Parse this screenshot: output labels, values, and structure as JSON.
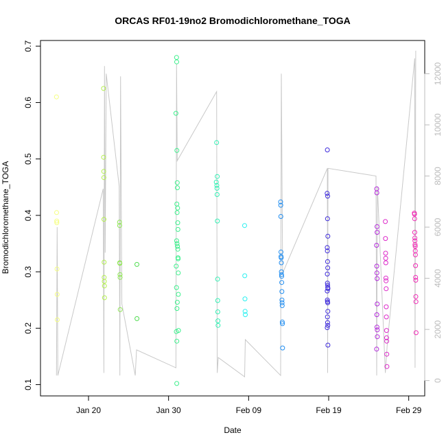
{
  "chart_data": {
    "type": "scatter",
    "title": "ORCAS RF01-19no2 Bromodichloromethane_TOGA",
    "xlabel": "Date",
    "ylabel": "Bromodichloromethane_TOGA",
    "x_axis": {
      "scale": "date",
      "range": [
        "2016-01-14",
        "2016-03-02"
      ],
      "ticks": [
        {
          "date": "2016-01-20",
          "label": "Jan 20"
        },
        {
          "date": "2016-01-30",
          "label": "Jan 30"
        },
        {
          "date": "2016-02-09",
          "label": "Feb 09"
        },
        {
          "date": "2016-02-19",
          "label": "Feb 19"
        },
        {
          "date": "2016-02-29",
          "label": "Feb 29"
        }
      ]
    },
    "y_axis": {
      "range": [
        0.08,
        0.71
      ],
      "ticks": [
        0.1,
        0.2,
        0.3,
        0.4,
        0.5,
        0.6,
        0.7
      ]
    },
    "y2_axis": {
      "color": "#bbbbbb",
      "range": [
        -600,
        13300
      ],
      "ticks": [
        0,
        2000,
        4000,
        6000,
        8000,
        10000,
        12000
      ]
    },
    "grid": false,
    "series": [
      {
        "color": "#f5ff80",
        "points": [
          {
            "x": "2016-01-16 00:00",
            "y": 0.61
          },
          {
            "x": "2016-01-16 00:20",
            "y": 0.405
          },
          {
            "x": "2016-01-16 00:40",
            "y": 0.39
          },
          {
            "x": "2016-01-16 01:00",
            "y": 0.387
          },
          {
            "x": "2016-01-16 01:40",
            "y": 0.305
          },
          {
            "x": "2016-01-16 02:00",
            "y": 0.26
          },
          {
            "x": "2016-01-16 02:20",
            "y": 0.215
          }
        ]
      },
      {
        "color": "#b4f050",
        "points": [
          {
            "x": "2016-01-21 21:00",
            "y": 0.625
          },
          {
            "x": "2016-01-21 21:20",
            "y": 0.503
          },
          {
            "x": "2016-01-21 21:40",
            "y": 0.478
          },
          {
            "x": "2016-01-21 22:00",
            "y": 0.467
          },
          {
            "x": "2016-01-21 22:20",
            "y": 0.393
          },
          {
            "x": "2016-01-21 22:40",
            "y": 0.317
          },
          {
            "x": "2016-01-21 23:00",
            "y": 0.29
          },
          {
            "x": "2016-01-21 23:20",
            "y": 0.283
          },
          {
            "x": "2016-01-21 23:40",
            "y": 0.275
          },
          {
            "x": "2016-01-22 00:00",
            "y": 0.254
          }
        ]
      },
      {
        "color": "#8ce650",
        "points": [
          {
            "x": "2016-01-23 21:00",
            "y": 0.388
          },
          {
            "x": "2016-01-23 21:20",
            "y": 0.382
          },
          {
            "x": "2016-01-23 21:40",
            "y": 0.316
          },
          {
            "x": "2016-01-23 22:00",
            "y": 0.315
          },
          {
            "x": "2016-01-23 22:20",
            "y": 0.295
          },
          {
            "x": "2016-01-23 22:40",
            "y": 0.29
          },
          {
            "x": "2016-01-23 23:00",
            "y": 0.233
          }
        ]
      },
      {
        "color": "#50dc50",
        "points": [
          {
            "x": "2016-01-26 01:00",
            "y": 0.313
          },
          {
            "x": "2016-01-26 01:20",
            "y": 0.217
          }
        ]
      },
      {
        "color": "#3cf08c",
        "points": [
          {
            "x": "2016-01-31 00:00",
            "y": 0.68
          },
          {
            "x": "2016-01-31 00:20",
            "y": 0.672
          },
          {
            "x": "2016-01-30 22:00",
            "y": 0.581
          },
          {
            "x": "2016-01-31 01:00",
            "y": 0.515
          },
          {
            "x": "2016-01-31 02:00",
            "y": 0.458
          },
          {
            "x": "2016-01-31 02:20",
            "y": 0.449
          },
          {
            "x": "2016-01-31 00:40",
            "y": 0.42
          },
          {
            "x": "2016-01-31 03:00",
            "y": 0.413
          },
          {
            "x": "2016-01-31 01:40",
            "y": 0.405
          },
          {
            "x": "2016-01-31 03:20",
            "y": 0.387
          },
          {
            "x": "2016-01-31 04:00",
            "y": 0.375
          },
          {
            "x": "2016-01-31 00:10",
            "y": 0.355
          },
          {
            "x": "2016-01-31 01:20",
            "y": 0.35
          },
          {
            "x": "2016-01-31 02:40",
            "y": 0.345
          },
          {
            "x": "2016-01-31 03:40",
            "y": 0.34
          },
          {
            "x": "2016-01-31 04:20",
            "y": 0.325
          },
          {
            "x": "2016-01-31 04:40",
            "y": 0.323
          },
          {
            "x": "2016-01-30 23:00",
            "y": 0.31
          },
          {
            "x": "2016-01-31 05:00",
            "y": 0.298
          },
          {
            "x": "2016-01-30 23:40",
            "y": 0.272
          },
          {
            "x": "2016-01-31 05:20",
            "y": 0.26
          },
          {
            "x": "2016-01-31 02:10",
            "y": 0.246
          },
          {
            "x": "2016-01-31 01:10",
            "y": 0.235
          },
          {
            "x": "2016-01-31 05:40",
            "y": 0.196
          },
          {
            "x": "2016-01-30 23:20",
            "y": 0.194
          },
          {
            "x": "2016-01-31 00:50",
            "y": 0.177
          },
          {
            "x": "2016-01-31 00:30",
            "y": 0.102
          }
        ]
      },
      {
        "color": "#32f0b4",
        "points": [
          {
            "x": "2016-02-05 00:00",
            "y": 0.529
          },
          {
            "x": "2016-02-05 02:00",
            "y": 0.469
          },
          {
            "x": "2016-02-04 23:00",
            "y": 0.459
          },
          {
            "x": "2016-02-05 00:40",
            "y": 0.453
          },
          {
            "x": "2016-02-05 01:00",
            "y": 0.448
          },
          {
            "x": "2016-02-05 01:30",
            "y": 0.437
          },
          {
            "x": "2016-02-05 02:20",
            "y": 0.39
          },
          {
            "x": "2016-02-05 03:00",
            "y": 0.287
          },
          {
            "x": "2016-02-05 03:20",
            "y": 0.249
          },
          {
            "x": "2016-02-05 03:40",
            "y": 0.229
          },
          {
            "x": "2016-02-05 04:00",
            "y": 0.213
          },
          {
            "x": "2016-02-05 04:20",
            "y": 0.205
          }
        ]
      },
      {
        "color": "#28f0f0",
        "points": [
          {
            "x": "2016-02-08 12:00",
            "y": 0.382
          },
          {
            "x": "2016-02-08 12:30",
            "y": 0.293
          },
          {
            "x": "2016-02-08 13:00",
            "y": 0.252
          },
          {
            "x": "2016-02-08 13:30",
            "y": 0.23
          },
          {
            "x": "2016-02-08 14:00",
            "y": 0.224
          }
        ]
      },
      {
        "color": "#1e8cf0",
        "points": [
          {
            "x": "2016-02-13 00:00",
            "y": 0.424
          },
          {
            "x": "2016-02-13 00:20",
            "y": 0.418
          },
          {
            "x": "2016-02-13 00:40",
            "y": 0.398
          },
          {
            "x": "2016-02-13 01:00",
            "y": 0.335
          },
          {
            "x": "2016-02-13 01:20",
            "y": 0.327
          },
          {
            "x": "2016-02-13 01:40",
            "y": 0.325
          },
          {
            "x": "2016-02-13 02:00",
            "y": 0.316
          },
          {
            "x": "2016-02-13 02:20",
            "y": 0.3
          },
          {
            "x": "2016-02-13 02:40",
            "y": 0.295
          },
          {
            "x": "2016-02-13 03:00",
            "y": 0.292
          },
          {
            "x": "2016-02-13 03:20",
            "y": 0.281
          },
          {
            "x": "2016-02-13 03:40",
            "y": 0.265
          },
          {
            "x": "2016-02-13 04:00",
            "y": 0.25
          },
          {
            "x": "2016-02-13 04:20",
            "y": 0.245
          },
          {
            "x": "2016-02-13 04:40",
            "y": 0.24
          },
          {
            "x": "2016-02-13 05:00",
            "y": 0.211
          },
          {
            "x": "2016-02-13 05:20",
            "y": 0.208
          },
          {
            "x": "2016-02-13 05:40",
            "y": 0.165
          }
        ]
      },
      {
        "color": "#3c28dc",
        "points": [
          {
            "x": "2016-02-18 20:00",
            "y": 0.516
          },
          {
            "x": "2016-02-18 19:30",
            "y": 0.439
          },
          {
            "x": "2016-02-18 21:00",
            "y": 0.434
          },
          {
            "x": "2016-02-18 20:30",
            "y": 0.394
          },
          {
            "x": "2016-02-18 21:30",
            "y": 0.363
          },
          {
            "x": "2016-02-18 19:40",
            "y": 0.343
          },
          {
            "x": "2016-02-18 20:10",
            "y": 0.337
          },
          {
            "x": "2016-02-18 20:40",
            "y": 0.318
          },
          {
            "x": "2016-02-18 21:10",
            "y": 0.307
          },
          {
            "x": "2016-02-18 19:50",
            "y": 0.296
          },
          {
            "x": "2016-02-18 20:20",
            "y": 0.28
          },
          {
            "x": "2016-02-18 20:50",
            "y": 0.276
          },
          {
            "x": "2016-02-18 21:20",
            "y": 0.272
          },
          {
            "x": "2016-02-18 21:40",
            "y": 0.27
          },
          {
            "x": "2016-02-18 19:35",
            "y": 0.266
          },
          {
            "x": "2016-02-18 20:05",
            "y": 0.25
          },
          {
            "x": "2016-02-18 20:35",
            "y": 0.247
          },
          {
            "x": "2016-02-18 21:05",
            "y": 0.245
          },
          {
            "x": "2016-02-18 21:35",
            "y": 0.23
          },
          {
            "x": "2016-02-18 20:15",
            "y": 0.22
          },
          {
            "x": "2016-02-18 20:45",
            "y": 0.21
          },
          {
            "x": "2016-02-18 21:15",
            "y": 0.205
          },
          {
            "x": "2016-02-18 19:45",
            "y": 0.201
          },
          {
            "x": "2016-02-18 21:45",
            "y": 0.17
          }
        ]
      },
      {
        "color": "#b428dc",
        "points": [
          {
            "x": "2016-02-25 00:00",
            "y": 0.447
          },
          {
            "x": "2016-02-25 00:30",
            "y": 0.44
          },
          {
            "x": "2016-02-25 01:00",
            "y": 0.38
          },
          {
            "x": "2016-02-25 01:20",
            "y": 0.37
          },
          {
            "x": "2016-02-24 23:30",
            "y": 0.347
          },
          {
            "x": "2016-02-25 00:10",
            "y": 0.31
          },
          {
            "x": "2016-02-25 00:40",
            "y": 0.298
          },
          {
            "x": "2016-02-25 01:10",
            "y": 0.288
          },
          {
            "x": "2016-02-25 01:30",
            "y": 0.243
          },
          {
            "x": "2016-02-25 00:20",
            "y": 0.224
          },
          {
            "x": "2016-02-25 00:50",
            "y": 0.202
          },
          {
            "x": "2016-02-25 01:40",
            "y": 0.197
          },
          {
            "x": "2016-02-25 01:50",
            "y": 0.185
          },
          {
            "x": "2016-02-24 23:50",
            "y": 0.163
          }
        ]
      },
      {
        "color": "#dc28c8",
        "points": [
          {
            "x": "2016-02-26 02:00",
            "y": 0.389
          },
          {
            "x": "2016-02-26 02:20",
            "y": 0.359
          },
          {
            "x": "2016-02-26 02:40",
            "y": 0.333
          },
          {
            "x": "2016-02-26 03:00",
            "y": 0.324
          },
          {
            "x": "2016-02-26 03:20",
            "y": 0.316
          },
          {
            "x": "2016-02-26 03:40",
            "y": 0.289
          },
          {
            "x": "2016-02-26 04:00",
            "y": 0.284
          },
          {
            "x": "2016-02-26 04:20",
            "y": 0.27
          },
          {
            "x": "2016-02-26 04:40",
            "y": 0.238
          },
          {
            "x": "2016-02-26 05:00",
            "y": 0.22
          },
          {
            "x": "2016-02-26 05:20",
            "y": 0.196
          },
          {
            "x": "2016-02-26 05:40",
            "y": 0.183
          },
          {
            "x": "2016-02-26 06:00",
            "y": 0.177
          },
          {
            "x": "2016-02-26 06:20",
            "y": 0.154
          },
          {
            "x": "2016-02-26 06:40",
            "y": 0.132
          }
        ]
      },
      {
        "color": "#f028b4",
        "points": [
          {
            "x": "2016-02-29 17:00",
            "y": 0.404
          },
          {
            "x": "2016-02-29 17:20",
            "y": 0.402
          },
          {
            "x": "2016-02-29 17:40",
            "y": 0.394
          },
          {
            "x": "2016-02-29 18:00",
            "y": 0.37
          },
          {
            "x": "2016-02-29 18:20",
            "y": 0.36
          },
          {
            "x": "2016-02-29 18:40",
            "y": 0.355
          },
          {
            "x": "2016-02-29 19:00",
            "y": 0.348
          },
          {
            "x": "2016-02-29 19:20",
            "y": 0.345
          },
          {
            "x": "2016-02-29 19:40",
            "y": 0.337
          },
          {
            "x": "2016-02-29 20:00",
            "y": 0.33
          },
          {
            "x": "2016-02-29 20:20",
            "y": 0.311
          },
          {
            "x": "2016-02-29 20:40",
            "y": 0.29
          },
          {
            "x": "2016-02-29 21:00",
            "y": 0.285
          },
          {
            "x": "2016-02-29 21:20",
            "y": 0.256
          },
          {
            "x": "2016-02-29 21:40",
            "y": 0.247
          },
          {
            "x": "2016-02-29 22:00",
            "y": 0.192
          }
        ]
      }
    ],
    "altitude_line": {
      "color": "#c8c8c8",
      "axis": "y2",
      "points": [
        {
          "x": "2016-01-16 00:00",
          "y": 200
        },
        {
          "x": "2016-01-16 02:00",
          "y": 6000
        },
        {
          "x": "2016-01-16 04:00",
          "y": 200
        },
        {
          "x": "2016-01-21 20:00",
          "y": 7500
        },
        {
          "x": "2016-01-21 22:00",
          "y": 300
        },
        {
          "x": "2016-01-22 00:00",
          "y": 12300
        },
        {
          "x": "2016-01-22 02:00",
          "y": 5000
        },
        {
          "x": "2016-01-22 05:00",
          "y": 12000
        },
        {
          "x": "2016-01-23 20:00",
          "y": 7600
        },
        {
          "x": "2016-01-23 22:00",
          "y": 200
        },
        {
          "x": "2016-01-24 00:00",
          "y": 11900
        },
        {
          "x": "2016-01-24 04:00",
          "y": 3000
        },
        {
          "x": "2016-01-25 20:00",
          "y": 200
        },
        {
          "x": "2016-01-26 00:00",
          "y": 1200
        },
        {
          "x": "2016-01-30 22:00",
          "y": 500
        },
        {
          "x": "2016-01-31 00:00",
          "y": 12400
        },
        {
          "x": "2016-01-31 02:00",
          "y": 8600
        },
        {
          "x": "2016-02-05 00:00",
          "y": 11300
        },
        {
          "x": "2016-02-05 02:00",
          "y": 300
        },
        {
          "x": "2016-02-05 05:00",
          "y": 900
        },
        {
          "x": "2016-02-08 12:00",
          "y": 150
        },
        {
          "x": "2016-02-08 14:00",
          "y": 1600
        },
        {
          "x": "2016-02-13 00:00",
          "y": 200
        },
        {
          "x": "2016-02-13 02:00",
          "y": 12000
        },
        {
          "x": "2016-02-13 06:00",
          "y": 4200
        },
        {
          "x": "2016-02-18 20:00",
          "y": 8300
        },
        {
          "x": "2016-02-18 21:00",
          "y": 300
        },
        {
          "x": "2016-02-18 22:00",
          "y": 8300
        },
        {
          "x": "2016-02-24 22:00",
          "y": 8000
        },
        {
          "x": "2016-02-25 00:00",
          "y": 200
        },
        {
          "x": "2016-02-25 02:00",
          "y": 7600
        },
        {
          "x": "2016-02-26 02:00",
          "y": 300
        },
        {
          "x": "2016-02-26 08:00",
          "y": 1500
        },
        {
          "x": "2016-02-29 18:00",
          "y": 12600
        },
        {
          "x": "2016-02-29 19:00",
          "y": 500
        },
        {
          "x": "2016-02-29 21:00",
          "y": 12900
        }
      ]
    }
  }
}
